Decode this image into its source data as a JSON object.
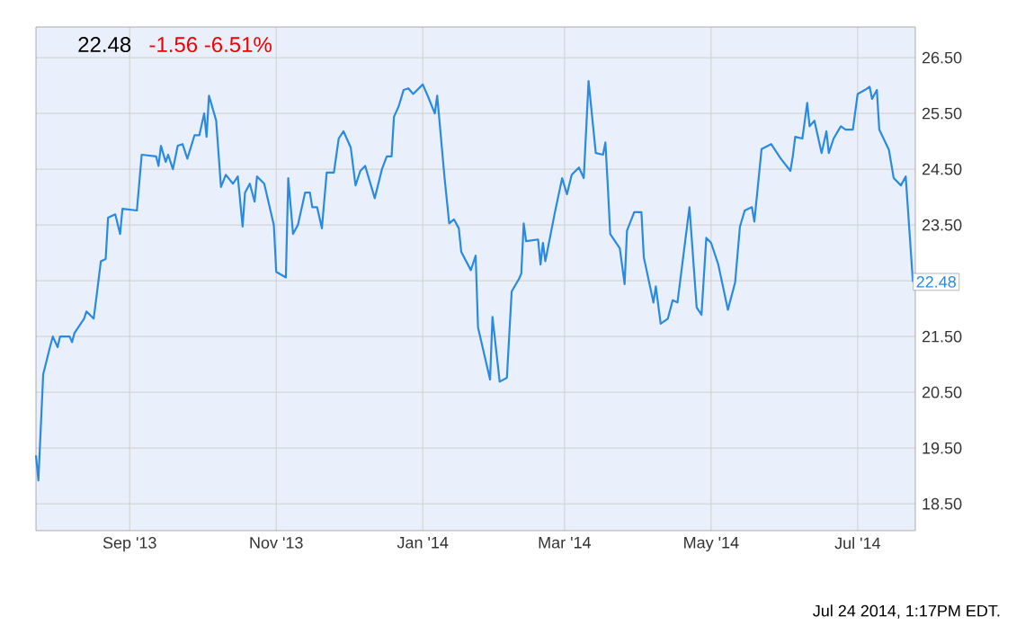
{
  "chart_data": {
    "type": "line",
    "title": "22.48",
    "subtitle": "-1.56  -6.51%",
    "x": [
      "2013-07-24",
      "2013-07-25",
      "2013-07-27",
      "2013-07-30",
      "2013-07-31",
      "2013-08-02",
      "2013-08-03",
      "2013-08-07",
      "2013-08-08",
      "2013-08-09",
      "2013-08-13",
      "2013-08-14",
      "2013-08-17",
      "2013-08-18",
      "2013-08-20",
      "2013-08-22",
      "2013-08-23",
      "2013-08-26",
      "2013-08-28",
      "2013-08-29",
      "2013-09-04",
      "2013-09-06",
      "2013-09-12",
      "2013-09-13",
      "2013-09-14",
      "2013-09-16",
      "2013-09-17",
      "2013-09-19",
      "2013-09-21",
      "2013-09-23",
      "2013-09-25",
      "2013-09-28",
      "2013-09-30",
      "2013-10-02",
      "2013-10-03",
      "2013-10-04",
      "2013-10-07",
      "2013-10-09",
      "2013-10-11",
      "2013-10-14",
      "2013-10-16",
      "2013-10-18",
      "2013-10-19",
      "2013-10-21",
      "2013-10-23",
      "2013-10-24",
      "2013-10-27",
      "2013-10-31",
      "2013-11-01",
      "2013-11-05",
      "2013-11-06",
      "2013-11-08",
      "2013-11-10",
      "2013-11-13",
      "2013-11-15",
      "2013-11-16",
      "2013-11-18",
      "2013-11-20",
      "2013-11-22",
      "2013-11-25",
      "2013-11-27",
      "2013-11-29",
      "2013-12-02",
      "2013-12-04",
      "2013-12-06",
      "2013-12-08",
      "2013-12-12",
      "2013-12-15",
      "2013-12-17",
      "2013-12-19",
      "2013-12-20",
      "2013-12-22",
      "2013-12-24",
      "2013-12-26",
      "2013-12-28",
      "2014-01-01",
      "2014-01-03",
      "2014-01-06",
      "2014-01-07",
      "2014-01-10",
      "2014-01-12",
      "2014-01-14",
      "2014-01-16",
      "2014-01-17",
      "2014-01-21",
      "2014-01-23",
      "2014-01-24",
      "2014-01-29",
      "2014-01-30",
      "2014-02-02",
      "2014-02-05",
      "2014-02-07",
      "2014-02-10",
      "2014-02-11",
      "2014-02-12",
      "2014-02-13",
      "2014-02-18",
      "2014-02-19",
      "2014-02-20",
      "2014-02-21",
      "2014-02-25",
      "2014-02-28",
      "2014-03-02",
      "2014-03-04",
      "2014-03-07",
      "2014-03-09",
      "2014-03-11",
      "2014-03-14",
      "2014-03-17",
      "2014-03-18",
      "2014-03-19",
      "2014-03-20",
      "2014-03-24",
      "2014-03-26",
      "2014-03-27",
      "2014-03-30",
      "2014-04-02",
      "2014-04-03",
      "2014-04-07",
      "2014-04-08",
      "2014-04-10",
      "2014-04-13",
      "2014-04-15",
      "2014-04-17",
      "2014-04-22",
      "2014-04-25",
      "2014-04-27",
      "2014-04-29",
      "2014-05-01",
      "2014-05-04",
      "2014-05-08",
      "2014-05-11",
      "2014-05-13",
      "2014-05-15",
      "2014-05-18",
      "2014-05-19",
      "2014-05-22",
      "2014-05-26",
      "2014-05-30",
      "2014-06-03",
      "2014-06-04",
      "2014-06-05",
      "2014-06-08",
      "2014-06-10",
      "2014-06-11",
      "2014-06-13",
      "2014-06-16",
      "2014-06-18",
      "2014-06-19",
      "2014-06-21",
      "2014-06-24",
      "2014-06-26",
      "2014-06-29",
      "2014-07-01",
      "2014-07-04",
      "2014-07-06",
      "2014-07-07",
      "2014-07-09",
      "2014-07-10",
      "2014-07-14",
      "2014-07-16",
      "2014-07-19",
      "2014-07-21",
      "2014-07-24"
    ],
    "series": [
      {
        "color": "#2a8ae2",
        "values": [
          19.37,
          18.92,
          20.82,
          21.34,
          21.5,
          21.31,
          21.5,
          21.5,
          21.4,
          21.56,
          21.82,
          21.95,
          21.82,
          22.15,
          22.85,
          22.89,
          23.63,
          23.69,
          23.34,
          23.79,
          23.76,
          24.76,
          24.73,
          24.56,
          24.92,
          24.63,
          24.76,
          24.5,
          24.92,
          24.95,
          24.69,
          25.11,
          25.11,
          25.5,
          25.08,
          25.82,
          25.37,
          24.18,
          24.4,
          24.24,
          24.37,
          23.47,
          24.08,
          24.24,
          23.92,
          24.37,
          24.24,
          23.5,
          22.66,
          22.56,
          24.34,
          23.34,
          23.5,
          24.08,
          24.08,
          23.82,
          23.82,
          23.44,
          24.44,
          24.44,
          25.05,
          25.18,
          24.89,
          24.21,
          24.47,
          24.56,
          23.98,
          24.5,
          24.73,
          24.73,
          25.44,
          25.63,
          25.92,
          25.95,
          25.85,
          26.02,
          25.82,
          25.5,
          25.82,
          24.37,
          23.53,
          23.6,
          23.44,
          23.02,
          22.69,
          22.95,
          21.66,
          20.73,
          21.85,
          20.69,
          20.76,
          22.31,
          22.53,
          22.63,
          23.53,
          23.21,
          23.24,
          22.79,
          23.18,
          22.85,
          23.73,
          24.34,
          24.05,
          24.4,
          24.53,
          24.34,
          26.08,
          24.79,
          24.76,
          24.98,
          24.21,
          23.34,
          23.08,
          22.44,
          23.4,
          23.73,
          23.73,
          22.92,
          22.11,
          22.4,
          21.73,
          21.82,
          22.15,
          22.11,
          23.82,
          22.02,
          21.89,
          23.27,
          23.18,
          22.79,
          21.98,
          22.47,
          23.47,
          23.76,
          23.82,
          23.56,
          24.86,
          24.95,
          24.69,
          24.47,
          24.73,
          25.08,
          25.05,
          25.69,
          25.27,
          25.37,
          24.79,
          25.18,
          24.79,
          25.05,
          25.27,
          25.21,
          25.21,
          25.85,
          25.92,
          25.98,
          25.76,
          25.92,
          25.21,
          24.85,
          24.34,
          24.21,
          24.37,
          22.48
        ]
      }
    ],
    "xlim": [
      "2013-07-24",
      "2014-07-25"
    ],
    "ylim": [
      18.02,
      27.05
    ],
    "xticks": [
      {
        "value": "2013-09-01",
        "label": "Sep '13"
      },
      {
        "value": "2013-11-01",
        "label": "Nov '13"
      },
      {
        "value": "2014-01-01",
        "label": "Jan '14"
      },
      {
        "value": "2014-03-01",
        "label": "Mar '14"
      },
      {
        "value": "2014-05-01",
        "label": "May '14"
      },
      {
        "value": "2014-07-01",
        "label": "Jul '14"
      }
    ],
    "yticks": [
      {
        "value": 18.5,
        "label": "18.50"
      },
      {
        "value": 19.5,
        "label": "19.50"
      },
      {
        "value": 20.5,
        "label": "20.50"
      },
      {
        "value": 21.5,
        "label": "21.50"
      },
      {
        "value": 22.5,
        "label": null
      },
      {
        "value": 23.5,
        "label": "23.50"
      },
      {
        "value": 24.5,
        "label": "24.50"
      },
      {
        "value": 25.5,
        "label": "25.50"
      },
      {
        "value": 26.5,
        "label": "26.50"
      }
    ],
    "grid": true,
    "annotations": [
      {
        "text": "22.48",
        "x": "2014-07-24",
        "y": 22.48
      },
      "Jul 24 2014, 1:17PM EDT."
    ]
  }
}
